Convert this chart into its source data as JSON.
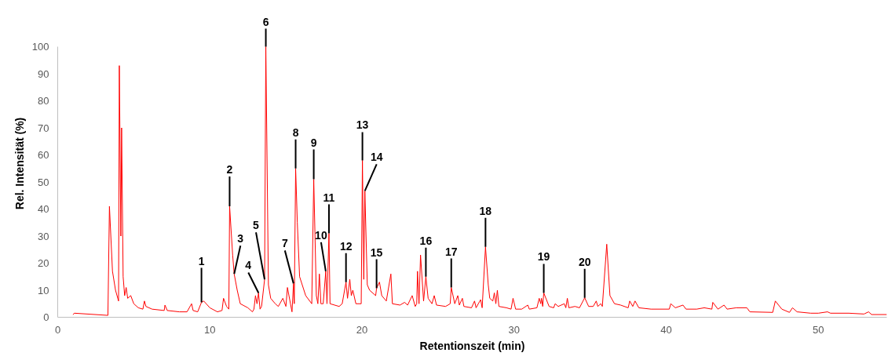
{
  "chart_data": {
    "type": "line",
    "xlabel": "Retentionszeit (min)",
    "ylabel": "Rel. Intensität (%)",
    "xlim": [
      0,
      54.5
    ],
    "ylim": [
      0,
      100
    ],
    "xticks": [
      0,
      10,
      20,
      30,
      40,
      50
    ],
    "yticks": [
      0,
      10,
      20,
      30,
      40,
      50,
      60,
      70,
      80,
      90,
      100
    ],
    "grid": false,
    "marker": "none",
    "line_style": "solid",
    "series": [
      {
        "color": "#ff0000",
        "x": [
          1.0,
          1.1,
          3.3,
          3.4,
          3.6,
          3.8,
          4.0,
          4.05,
          4.15,
          4.2,
          4.3,
          4.4,
          4.5,
          4.6,
          4.8,
          5.0,
          5.3,
          5.6,
          5.7,
          5.8,
          6.2,
          7.0,
          7.05,
          7.2,
          8.0,
          8.5,
          8.8,
          8.9,
          9.2,
          9.45,
          9.6,
          10.0,
          10.5,
          10.8,
          10.9,
          11.1,
          11.25,
          11.3,
          11.5,
          11.6,
          11.8,
          12.0,
          12.5,
          12.8,
          12.9,
          13.0,
          13.1,
          13.2,
          13.3,
          13.4,
          13.6,
          13.68,
          13.85,
          14.0,
          14.3,
          14.5,
          14.8,
          15.0,
          15.1,
          15.3,
          15.4,
          15.5,
          15.55,
          15.64,
          15.75,
          15.9,
          16.3,
          16.7,
          16.83,
          17.0,
          17.1,
          17.2,
          17.3,
          17.45,
          17.62,
          17.7,
          17.83,
          17.9,
          18.5,
          18.7,
          18.95,
          19.05,
          19.2,
          19.3,
          19.4,
          19.6,
          19.95,
          20.03,
          20.12,
          20.19,
          20.35,
          20.5,
          20.9,
          20.96,
          21.15,
          21.3,
          21.6,
          21.9,
          22.0,
          22.5,
          22.8,
          23.0,
          23.3,
          23.5,
          23.6,
          23.65,
          23.75,
          23.85,
          24.05,
          24.2,
          24.35,
          24.6,
          24.75,
          24.9,
          25.5,
          25.8,
          25.87,
          26.1,
          26.3,
          26.4,
          26.6,
          26.7,
          27.2,
          27.4,
          27.5,
          27.8,
          27.9,
          28.12,
          28.3,
          28.4,
          28.6,
          28.7,
          28.8,
          28.9,
          29.0,
          29.5,
          29.8,
          29.93,
          30.1,
          30.5,
          30.9,
          31.0,
          31.5,
          31.65,
          31.75,
          31.8,
          31.88,
          31.95,
          32.3,
          32.6,
          32.7,
          32.9,
          33.3,
          33.4,
          33.5,
          33.6,
          34.0,
          34.3,
          34.64,
          34.9,
          35.2,
          35.4,
          35.5,
          35.7,
          35.8,
          36.09,
          36.3,
          36.6,
          37.0,
          37.5,
          37.6,
          37.8,
          37.95,
          38.2,
          39.0,
          40.2,
          40.3,
          40.6,
          41.1,
          41.3,
          42.0,
          42.5,
          43.0,
          43.06,
          43.4,
          43.8,
          44.0,
          44.6,
          45.3,
          45.5,
          47.0,
          47.17,
          47.6,
          48.1,
          48.3,
          48.6,
          49.5,
          50.0,
          50.6,
          50.8,
          52.0,
          53.0,
          53.3,
          53.5,
          54.5
        ],
        "values": [
          1.0,
          1.5,
          0.7,
          41,
          17,
          10,
          6,
          93,
          30,
          70,
          15,
          8,
          11,
          7,
          8,
          5,
          3.5,
          3,
          6,
          4,
          3,
          2.5,
          4.5,
          2.5,
          2,
          2,
          5,
          2.5,
          2,
          5.5,
          6,
          3.5,
          2,
          2.5,
          7,
          4,
          3,
          41,
          23,
          16,
          10,
          5,
          3.5,
          2,
          3,
          8,
          5,
          9,
          3,
          4,
          14,
          100,
          12,
          7,
          5,
          4,
          7,
          4,
          11,
          5,
          2,
          12.5,
          5,
          55,
          35,
          15,
          8,
          5,
          51,
          8,
          5,
          16,
          5,
          5,
          17,
          5,
          31,
          5,
          4,
          5,
          13,
          7,
          14,
          8,
          10,
          5,
          5,
          58,
          14,
          46.7,
          12,
          10,
          8,
          10.7,
          13,
          8,
          6,
          16,
          5,
          4.5,
          5.5,
          4.5,
          8,
          4,
          5,
          17,
          5,
          23,
          6,
          15,
          7,
          5,
          8,
          4.5,
          4,
          5,
          11,
          5,
          8,
          4.5,
          7,
          4,
          3.5,
          6,
          3.5,
          6.5,
          3.5,
          26,
          12,
          7,
          6,
          9,
          5,
          10,
          4,
          3.5,
          3,
          7,
          3,
          3,
          4.5,
          3,
          3.5,
          7,
          5,
          7,
          4,
          9,
          4,
          3.5,
          5,
          4,
          5,
          3.5,
          7,
          3.5,
          4,
          3.5,
          7.2,
          4,
          4,
          6,
          4,
          5,
          4,
          27,
          8,
          5,
          4.5,
          3.5,
          6,
          4,
          6,
          3.5,
          3,
          3,
          5,
          3.5,
          4.5,
          3,
          3,
          3.5,
          3,
          5.5,
          3,
          4.5,
          3,
          3.5,
          3.5,
          2,
          1.8,
          6,
          3,
          1.8,
          3.5,
          2,
          1.5,
          1.5,
          2,
          1.5,
          1.5,
          1.2,
          2,
          1,
          1
        ]
      }
    ],
    "annotations": [
      {
        "text": "1",
        "x": 9.45,
        "y": 5.5
      },
      {
        "text": "2",
        "x": 11.3,
        "y": 41
      },
      {
        "text": "3",
        "x": 11.6,
        "y": 16
      },
      {
        "text": "4",
        "x": 13.2,
        "y": 9
      },
      {
        "text": "5",
        "x": 13.6,
        "y": 14
      },
      {
        "text": "6",
        "x": 13.68,
        "y": 100
      },
      {
        "text": "7",
        "x": 15.5,
        "y": 12.5
      },
      {
        "text": "8",
        "x": 15.64,
        "y": 55
      },
      {
        "text": "9",
        "x": 16.83,
        "y": 51
      },
      {
        "text": "10",
        "x": 17.62,
        "y": 17
      },
      {
        "text": "11",
        "x": 17.83,
        "y": 31
      },
      {
        "text": "12",
        "x": 18.95,
        "y": 13
      },
      {
        "text": "13",
        "x": 20.03,
        "y": 58
      },
      {
        "text": "14",
        "x": 20.19,
        "y": 46.7
      },
      {
        "text": "15",
        "x": 20.96,
        "y": 10.7
      },
      {
        "text": "16",
        "x": 24.2,
        "y": 15
      },
      {
        "text": "17",
        "x": 25.87,
        "y": 11
      },
      {
        "text": "18",
        "x": 28.12,
        "y": 26
      },
      {
        "text": "19",
        "x": 31.95,
        "y": 9
      },
      {
        "text": "20",
        "x": 34.64,
        "y": 7.2
      }
    ]
  }
}
